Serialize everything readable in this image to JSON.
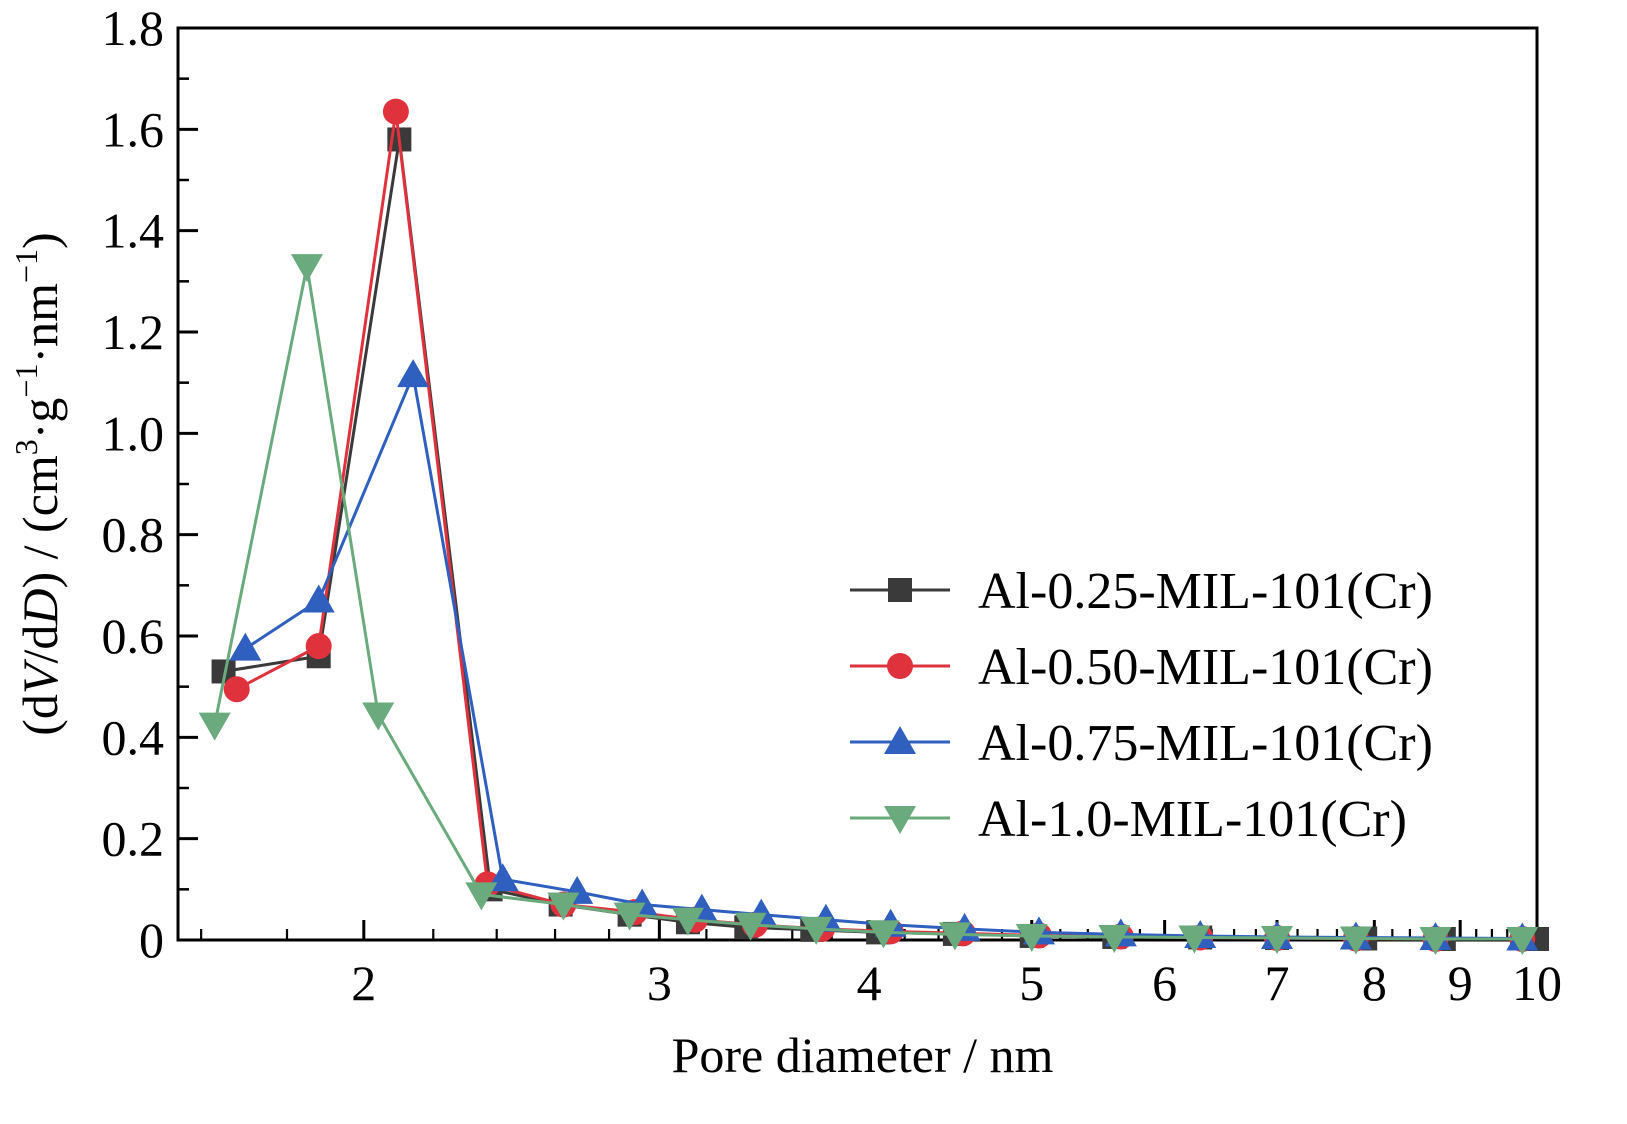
{
  "chart_data": {
    "type": "line",
    "xlabel": "Pore diameter / nm",
    "ylabel_parts": [
      "(d",
      "V",
      "/d",
      "D",
      ") / (cm",
      "3",
      "·g",
      "−1",
      "·nm",
      "−1",
      ")"
    ],
    "xscale": "log",
    "xlim": [
      1.55,
      10
    ],
    "ylim": [
      0,
      1.8
    ],
    "xticks": [
      2,
      3,
      4,
      5,
      6,
      7,
      8,
      9,
      10
    ],
    "xtick_labels": [
      "2",
      "3",
      "4",
      "5",
      "6",
      "7",
      "8",
      "9",
      "10"
    ],
    "yticks": [
      0,
      0.2,
      0.4,
      0.6,
      0.8,
      1.0,
      1.2,
      1.4,
      1.6,
      1.8
    ],
    "ytick_labels": [
      "0",
      "0.2",
      "0.4",
      "0.6",
      "0.8",
      "1.0",
      "1.2",
      "1.4",
      "1.6",
      "1.8"
    ],
    "legend_position": "right",
    "series": [
      {
        "name": "Al-0.25-MIL-101(Cr)",
        "color": "#3a3a3a",
        "marker": "square",
        "x": [
          1.65,
          1.88,
          2.1,
          2.38,
          2.62,
          2.88,
          3.12,
          3.38,
          3.7,
          4.05,
          4.5,
          5.0,
          5.6,
          6.3,
          7.0,
          7.9,
          8.8,
          10.0
        ],
        "y": [
          0.53,
          0.56,
          1.58,
          0.1,
          0.07,
          0.05,
          0.035,
          0.025,
          0.02,
          0.015,
          0.012,
          0.008,
          0.006,
          0.005,
          0.004,
          0.003,
          0.002,
          0.002
        ]
      },
      {
        "name": "Al-0.50-MIL-101(Cr)",
        "color": "#e0323c",
        "marker": "circle",
        "x": [
          1.68,
          1.88,
          2.09,
          2.37,
          2.63,
          2.9,
          3.15,
          3.42,
          3.75,
          4.12,
          4.55,
          5.05,
          5.65,
          6.3,
          7.0,
          7.8,
          8.7,
          9.8
        ],
        "y": [
          0.495,
          0.58,
          1.635,
          0.11,
          0.07,
          0.055,
          0.04,
          0.03,
          0.022,
          0.017,
          0.013,
          0.009,
          0.007,
          0.005,
          0.004,
          0.003,
          0.002,
          0.002
        ]
      },
      {
        "name": "Al-0.75-MIL-101(Cr)",
        "color": "#2f5fbf",
        "marker": "triangle-up",
        "x": [
          1.7,
          1.88,
          2.14,
          2.42,
          2.68,
          2.93,
          3.18,
          3.45,
          3.77,
          4.12,
          4.56,
          5.05,
          5.65,
          6.3,
          7.0,
          7.8,
          8.7,
          9.8
        ],
        "y": [
          0.575,
          0.67,
          1.115,
          0.12,
          0.095,
          0.07,
          0.06,
          0.05,
          0.04,
          0.03,
          0.022,
          0.015,
          0.011,
          0.008,
          0.006,
          0.005,
          0.004,
          0.003
        ]
      },
      {
        "name": "Al-1.0-MIL-101(Cr)",
        "color": "#6aaa7c",
        "marker": "triangle-down",
        "x": [
          1.63,
          1.85,
          2.04,
          2.35,
          2.63,
          2.88,
          3.12,
          3.4,
          3.72,
          4.08,
          4.5,
          5.0,
          5.6,
          6.25,
          7.0,
          7.8,
          8.7,
          9.8
        ],
        "y": [
          0.425,
          1.33,
          0.445,
          0.09,
          0.07,
          0.05,
          0.04,
          0.03,
          0.022,
          0.015,
          0.011,
          0.008,
          0.006,
          0.005,
          0.004,
          0.003,
          0.002,
          0.002
        ]
      }
    ]
  }
}
